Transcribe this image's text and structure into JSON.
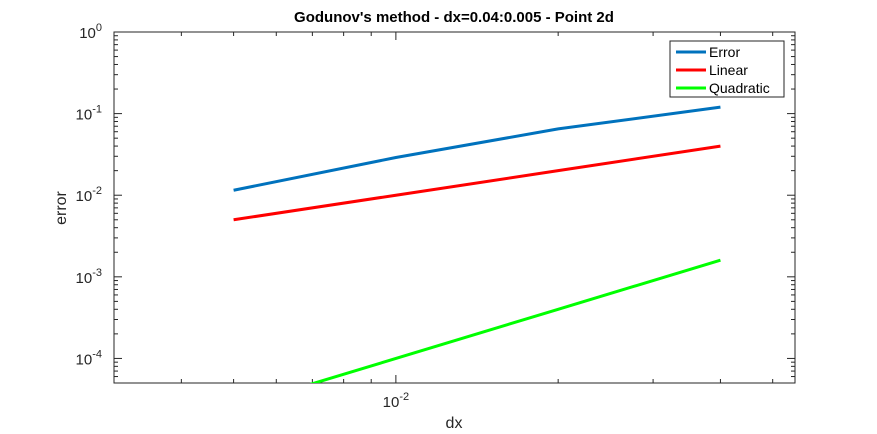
{
  "chart_data": {
    "type": "line",
    "title": "Godunov's method - dx=0.04:0.005 - Point 2d",
    "xlabel": "dx",
    "ylabel": "error",
    "xscale": "log",
    "yscale": "log",
    "xlim": [
      0.003,
      0.055
    ],
    "ylim": [
      5e-05,
      1
    ],
    "grid": false,
    "legend_position": "top-right",
    "x_ticks": [
      {
        "value": 0.01,
        "base": "10",
        "exp": "-2"
      }
    ],
    "y_ticks": [
      {
        "value": 1,
        "base": "10",
        "exp": "0"
      },
      {
        "value": 0.1,
        "base": "10",
        "exp": "-1"
      },
      {
        "value": 0.01,
        "base": "10",
        "exp": "-2"
      },
      {
        "value": 0.001,
        "base": "10",
        "exp": "-3"
      },
      {
        "value": 0.0001,
        "base": "10",
        "exp": "-4"
      }
    ],
    "series": [
      {
        "name": "Error",
        "color": "#0072bd",
        "x": [
          0.005,
          0.01,
          0.02,
          0.04
        ],
        "y": [
          0.0115,
          0.029,
          0.065,
          0.12
        ]
      },
      {
        "name": "Linear",
        "color": "#ff0000",
        "x": [
          0.005,
          0.01,
          0.02,
          0.04
        ],
        "y": [
          0.005,
          0.01,
          0.02,
          0.04
        ]
      },
      {
        "name": "Quadratic",
        "color": "#00ff00",
        "x": [
          0.005,
          0.01,
          0.02,
          0.04
        ],
        "y": [
          2.5e-05,
          0.0001,
          0.0004,
          0.0016
        ]
      }
    ]
  }
}
